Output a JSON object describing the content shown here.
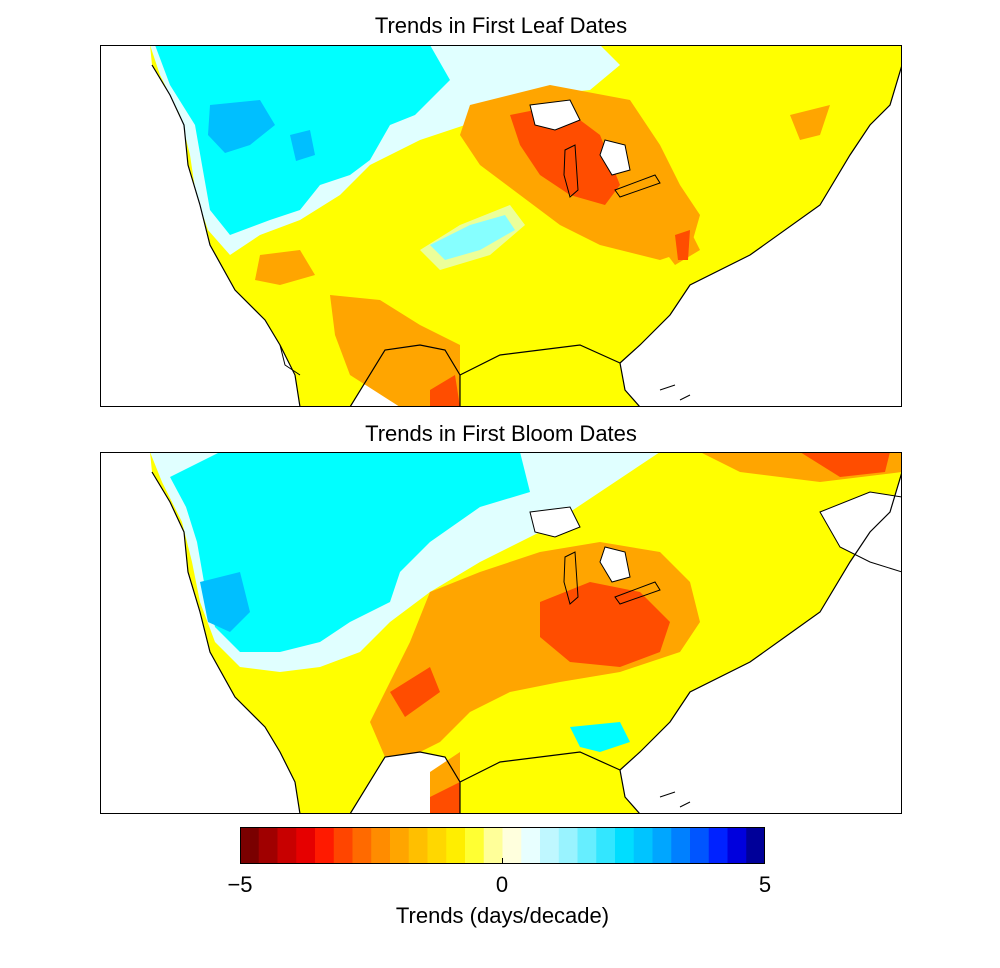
{
  "panels": [
    {
      "title": "Trends in First Leaf Dates"
    },
    {
      "title": "Trends in First Bloom Dates"
    }
  ],
  "colorbar": {
    "label": "Trends (days/decade)",
    "min": -5,
    "max": 5,
    "tick_labels": [
      "−5",
      "0",
      "5"
    ],
    "colors": [
      "#7a0000",
      "#a00000",
      "#c80000",
      "#e60000",
      "#ff1a00",
      "#ff4500",
      "#ff6a00",
      "#ff8c00",
      "#ffa500",
      "#ffbf00",
      "#ffd700",
      "#ffee00",
      "#ffff33",
      "#ffff99",
      "#ffffdd",
      "#e8ffff",
      "#bff7ff",
      "#99f3ff",
      "#66eeff",
      "#33e6ff",
      "#00ddff",
      "#00c4ff",
      "#00a6ff",
      "#0080ff",
      "#0055ff",
      "#0022ff",
      "#0000dd",
      "#000099"
    ]
  },
  "legend_colors": {
    "deep_orange": "#ff4d00",
    "orange": "#ffa500",
    "yellow": "#ffff00",
    "pale_cyan": "#e0ffff",
    "cyan": "#00ffff",
    "azure": "#00bfff",
    "white": "#ffffff"
  }
}
